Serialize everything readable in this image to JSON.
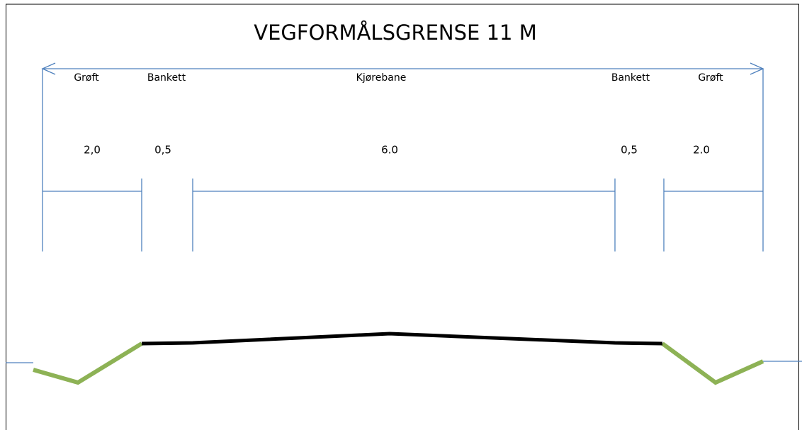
{
  "title": "VEGFORMÅLSGRENSE 11 M",
  "sections": [
    {
      "label": "Grøft",
      "width": "2,0"
    },
    {
      "label": "Bankett",
      "width": "0,5"
    },
    {
      "label": "Kjørebane",
      "width": "6.0"
    },
    {
      "label": "Bankett",
      "width": "0,5"
    },
    {
      "label": "Grøft",
      "width": "2.0"
    }
  ]
}
